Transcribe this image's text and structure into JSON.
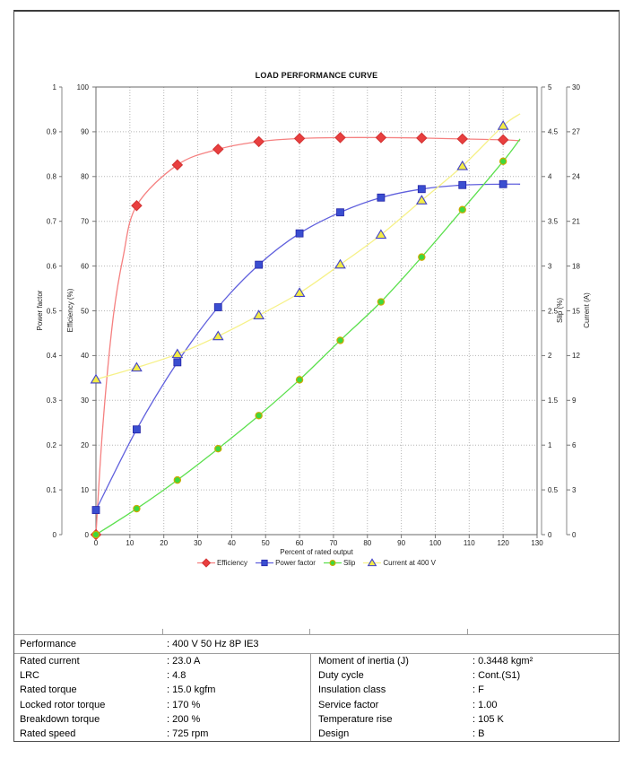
{
  "chart_data": {
    "type": "line",
    "title": "LOAD PERFORMANCE CURVE",
    "xlabel": "Percent of rated output",
    "grid": true,
    "legend_position": "bottom",
    "x": [
      0,
      12,
      24,
      36,
      48,
      60,
      72,
      84,
      96,
      108,
      120
    ],
    "axes": {
      "x": {
        "label": "Percent of rated output",
        "min": 0,
        "max": 130,
        "step": 10
      },
      "power_factor": {
        "label": "Power factor",
        "min": 0,
        "max": 1,
        "step": 0.1
      },
      "efficiency": {
        "label": "Efficiency (%)",
        "min": 0,
        "max": 100,
        "step": 10
      },
      "slip": {
        "label": "Slip (%)",
        "min": 0,
        "max": 5,
        "step": 0.5
      },
      "current": {
        "label": "Current (A)",
        "min": 0,
        "max": 30,
        "step": 3
      }
    },
    "series": [
      {
        "name": "Efficiency",
        "axis": "efficiency",
        "marker": "diamond",
        "color": "#e93f3f",
        "line_color": "#f58080",
        "marker_stroke": "#d43434",
        "values": [
          0,
          73.5,
          82.6,
          86.1,
          87.8,
          88.5,
          88.7,
          88.7,
          88.6,
          88.4,
          88.2
        ],
        "lead": [
          {
            "x": 2,
            "value": 24
          },
          {
            "x": 5,
            "value": 48
          },
          {
            "x": 8,
            "value": 62
          }
        ],
        "line_end": {
          "x": 125,
          "value": 88.0
        }
      },
      {
        "name": "Power factor",
        "axis": "power_factor",
        "marker": "square",
        "color": "#3a4ed0",
        "line_color": "#6060dd",
        "marker_stroke": "#2424a8",
        "values": [
          0.055,
          0.235,
          0.385,
          0.508,
          0.603,
          0.673,
          0.72,
          0.753,
          0.772,
          0.781,
          0.783
        ],
        "line_end": {
          "x": 125,
          "value": 0.783
        }
      },
      {
        "name": "Slip",
        "axis": "slip",
        "marker": "circle",
        "color": "#3ed83e",
        "line_color": "#5ce04e",
        "marker_stroke": "#ccaa00",
        "values": [
          0,
          0.29,
          0.61,
          0.96,
          1.33,
          1.73,
          2.17,
          2.6,
          3.1,
          3.63,
          4.17
        ],
        "line_end": {
          "x": 125,
          "value": 4.42
        }
      },
      {
        "name": "Current at 400 V",
        "axis": "current",
        "marker": "triangle",
        "color": "#f3ec45",
        "line_color": "#f6f188",
        "marker_stroke": "#4343c8",
        "values": [
          10.4,
          11.2,
          12.1,
          13.3,
          14.7,
          16.2,
          18.1,
          20.1,
          22.4,
          24.7,
          27.4
        ],
        "line_end": {
          "x": 125,
          "value": 28.2
        }
      }
    ]
  },
  "table": {
    "performance_label": "Performance",
    "performance_value": ": 400 V 50 Hz 8P IE3",
    "left_rows": [
      [
        "Rated current",
        ": 23.0 A"
      ],
      [
        "LRC",
        ": 4.8"
      ],
      [
        "Rated torque",
        ": 15.0 kgfm"
      ],
      [
        "Locked rotor torque",
        ": 170 %"
      ],
      [
        "Breakdown torque",
        ": 200 %"
      ],
      [
        "Rated speed",
        ": 725 rpm"
      ]
    ],
    "right_rows": [
      [
        "Moment of inertia (J)",
        ": 0.3448 kgm²"
      ],
      [
        "Duty cycle",
        ": Cont.(S1)"
      ],
      [
        "Insulation class",
        ": F"
      ],
      [
        "Service factor",
        ": 1.00"
      ],
      [
        "Temperature rise",
        ": 105 K"
      ],
      [
        "Design",
        ": B"
      ]
    ]
  }
}
